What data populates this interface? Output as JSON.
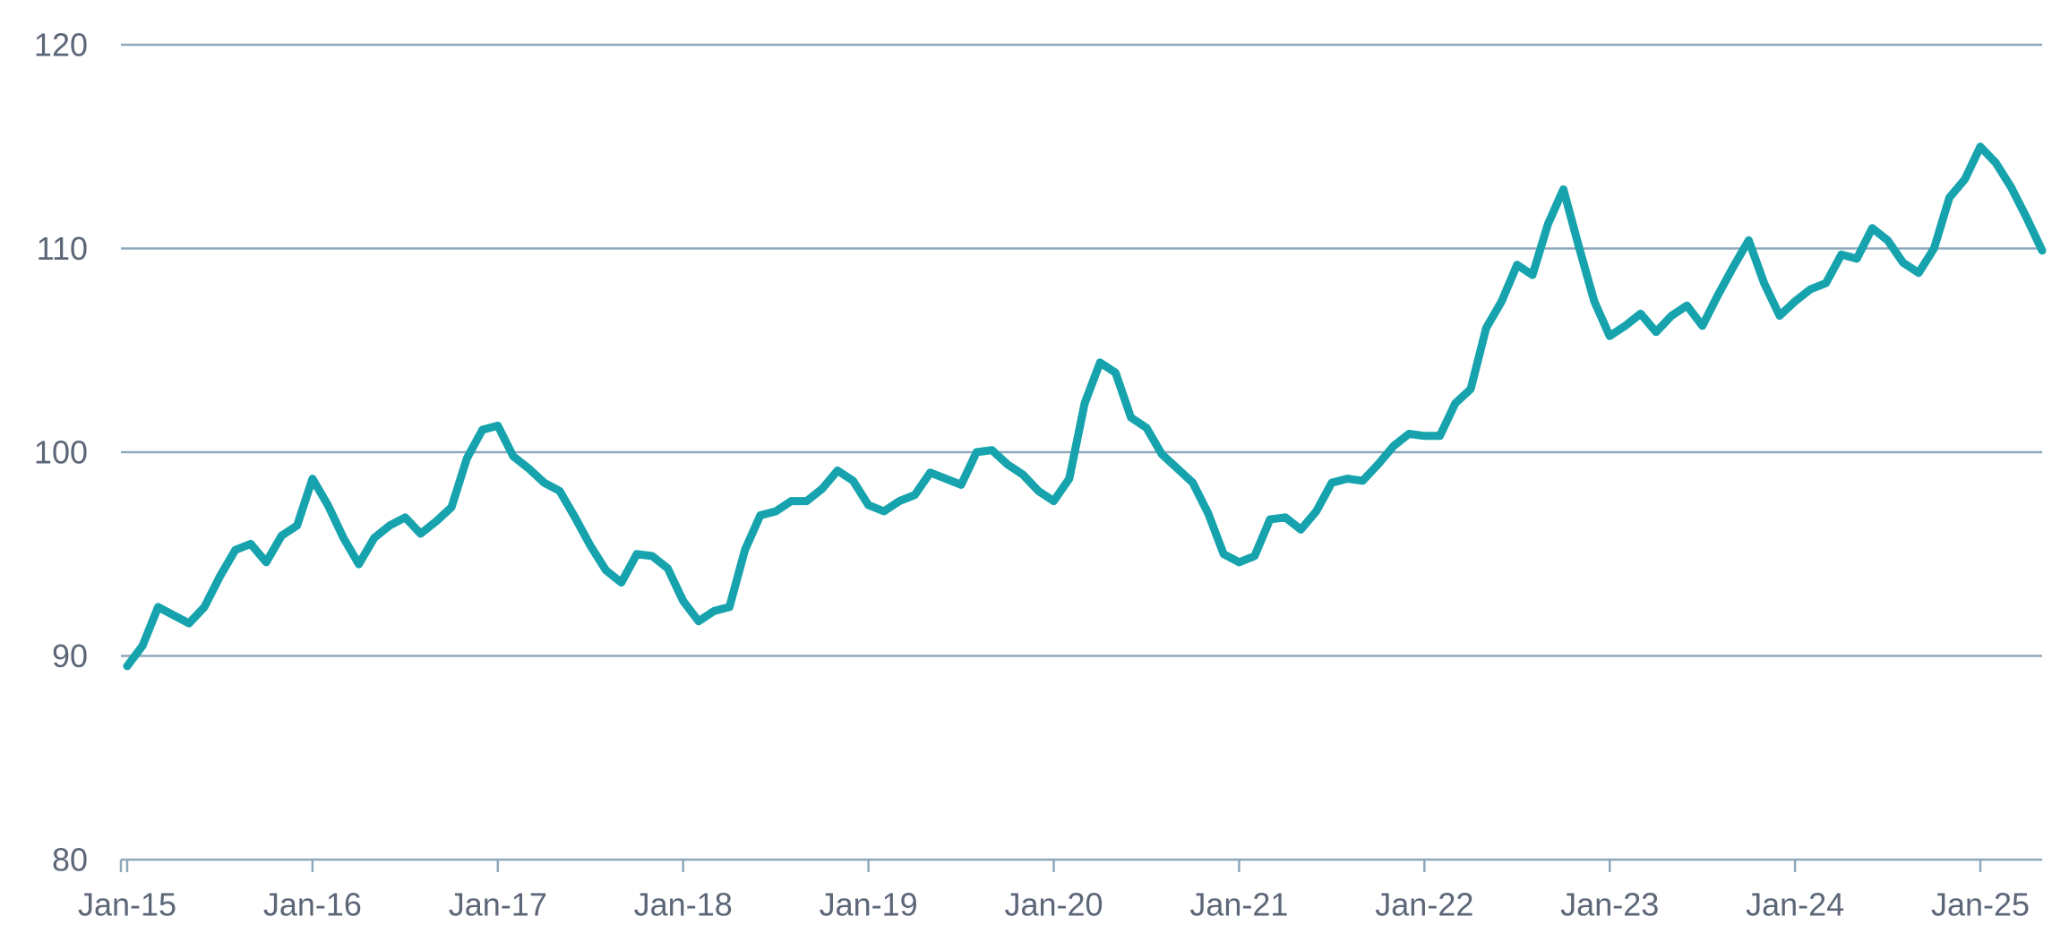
{
  "chart_data": {
    "type": "line",
    "title": "",
    "xlabel": "",
    "ylabel": "",
    "ylim": [
      80,
      120
    ],
    "yticks": [
      80,
      90,
      100,
      110,
      120
    ],
    "ytick_labels": [
      "80",
      "90",
      "100",
      "110",
      "120"
    ],
    "grid": true,
    "legend": "none",
    "x_tick_labels": [
      "Jan-15",
      "Jan-16",
      "Jan-17",
      "Jan-18",
      "Jan-19",
      "Jan-20",
      "Jan-21",
      "Jan-22",
      "Jan-23",
      "Jan-24",
      "Jan-25"
    ],
    "x_ticks": [
      "2015-01",
      "2016-01",
      "2017-01",
      "2018-01",
      "2019-01",
      "2020-01",
      "2021-01",
      "2022-01",
      "2023-01",
      "2024-01",
      "2025-01"
    ],
    "x_range": [
      "2015-01",
      "2025-05"
    ],
    "series": [
      {
        "color": "#16a3ad",
        "points": [
          [
            "2015-01",
            89.5
          ],
          [
            "2015-02",
            90.5
          ],
          [
            "2015-03",
            92.4
          ],
          [
            "2015-04",
            92.0
          ],
          [
            "2015-05",
            91.6
          ],
          [
            "2015-06",
            92.4
          ],
          [
            "2015-07",
            93.9
          ],
          [
            "2015-08",
            95.2
          ],
          [
            "2015-09",
            95.5
          ],
          [
            "2015-10",
            94.6
          ],
          [
            "2015-11",
            95.9
          ],
          [
            "2015-12",
            96.4
          ],
          [
            "2016-01",
            98.7
          ],
          [
            "2016-02",
            97.4
          ],
          [
            "2016-03",
            95.8
          ],
          [
            "2016-04",
            94.5
          ],
          [
            "2016-05",
            95.8
          ],
          [
            "2016-06",
            96.4
          ],
          [
            "2016-07",
            96.8
          ],
          [
            "2016-08",
            96.0
          ],
          [
            "2016-09",
            96.6
          ],
          [
            "2016-10",
            97.3
          ],
          [
            "2016-11",
            99.7
          ],
          [
            "2016-12",
            101.1
          ],
          [
            "2017-01",
            101.3
          ],
          [
            "2017-02",
            99.8
          ],
          [
            "2017-03",
            99.2
          ],
          [
            "2017-04",
            98.5
          ],
          [
            "2017-05",
            98.1
          ],
          [
            "2017-06",
            96.8
          ],
          [
            "2017-07",
            95.4
          ],
          [
            "2017-08",
            94.2
          ],
          [
            "2017-09",
            93.6
          ],
          [
            "2017-10",
            95.0
          ],
          [
            "2017-11",
            94.9
          ],
          [
            "2017-12",
            94.3
          ],
          [
            "2018-01",
            92.7
          ],
          [
            "2018-02",
            91.7
          ],
          [
            "2018-03",
            92.2
          ],
          [
            "2018-04",
            92.4
          ],
          [
            "2018-05",
            95.2
          ],
          [
            "2018-06",
            96.9
          ],
          [
            "2018-07",
            97.1
          ],
          [
            "2018-08",
            97.6
          ],
          [
            "2018-09",
            97.6
          ],
          [
            "2018-10",
            98.2
          ],
          [
            "2018-11",
            99.1
          ],
          [
            "2018-12",
            98.6
          ],
          [
            "2019-01",
            97.4
          ],
          [
            "2019-02",
            97.1
          ],
          [
            "2019-03",
            97.6
          ],
          [
            "2019-04",
            97.9
          ],
          [
            "2019-05",
            99.0
          ],
          [
            "2019-06",
            98.7
          ],
          [
            "2019-07",
            98.4
          ],
          [
            "2019-08",
            100.0
          ],
          [
            "2019-09",
            100.1
          ],
          [
            "2019-10",
            99.4
          ],
          [
            "2019-11",
            98.9
          ],
          [
            "2019-12",
            98.1
          ],
          [
            "2020-01",
            97.6
          ],
          [
            "2020-02",
            98.7
          ],
          [
            "2020-03",
            102.4
          ],
          [
            "2020-04",
            104.4
          ],
          [
            "2020-05",
            103.9
          ],
          [
            "2020-06",
            101.7
          ],
          [
            "2020-07",
            101.2
          ],
          [
            "2020-08",
            99.9
          ],
          [
            "2020-09",
            99.2
          ],
          [
            "2020-10",
            98.5
          ],
          [
            "2020-11",
            97.0
          ],
          [
            "2020-12",
            95.0
          ],
          [
            "2021-01",
            94.6
          ],
          [
            "2021-02",
            94.9
          ],
          [
            "2021-03",
            96.7
          ],
          [
            "2021-04",
            96.8
          ],
          [
            "2021-05",
            96.2
          ],
          [
            "2021-06",
            97.1
          ],
          [
            "2021-07",
            98.5
          ],
          [
            "2021-08",
            98.7
          ],
          [
            "2021-09",
            98.6
          ],
          [
            "2021-10",
            99.4
          ],
          [
            "2021-11",
            100.3
          ],
          [
            "2021-12",
            100.9
          ],
          [
            "2022-01",
            100.8
          ],
          [
            "2022-02",
            100.8
          ],
          [
            "2022-03",
            102.4
          ],
          [
            "2022-04",
            103.1
          ],
          [
            "2022-05",
            106.1
          ],
          [
            "2022-06",
            107.4
          ],
          [
            "2022-07",
            109.2
          ],
          [
            "2022-08",
            108.7
          ],
          [
            "2022-09",
            111.2
          ],
          [
            "2022-10",
            112.9
          ],
          [
            "2022-11",
            110.1
          ],
          [
            "2022-12",
            107.4
          ],
          [
            "2023-01",
            105.7
          ],
          [
            "2023-02",
            106.2
          ],
          [
            "2023-03",
            106.8
          ],
          [
            "2023-04",
            105.9
          ],
          [
            "2023-05",
            106.7
          ],
          [
            "2023-06",
            107.2
          ],
          [
            "2023-07",
            106.2
          ],
          [
            "2023-08",
            107.7
          ],
          [
            "2023-09",
            109.1
          ],
          [
            "2023-10",
            110.4
          ],
          [
            "2023-11",
            108.3
          ],
          [
            "2023-12",
            106.7
          ],
          [
            "2024-01",
            107.4
          ],
          [
            "2024-02",
            108.0
          ],
          [
            "2024-03",
            108.3
          ],
          [
            "2024-04",
            109.7
          ],
          [
            "2024-05",
            109.5
          ],
          [
            "2024-06",
            111.0
          ],
          [
            "2024-07",
            110.4
          ],
          [
            "2024-08",
            109.3
          ],
          [
            "2024-09",
            108.8
          ],
          [
            "2024-10",
            110.0
          ],
          [
            "2024-11",
            112.5
          ],
          [
            "2024-12",
            113.4
          ],
          [
            "2025-01",
            115.0
          ],
          [
            "2025-02",
            114.2
          ],
          [
            "2025-03",
            113.0
          ],
          [
            "2025-04",
            111.5
          ],
          [
            "2025-05",
            109.9
          ]
        ]
      }
    ]
  }
}
